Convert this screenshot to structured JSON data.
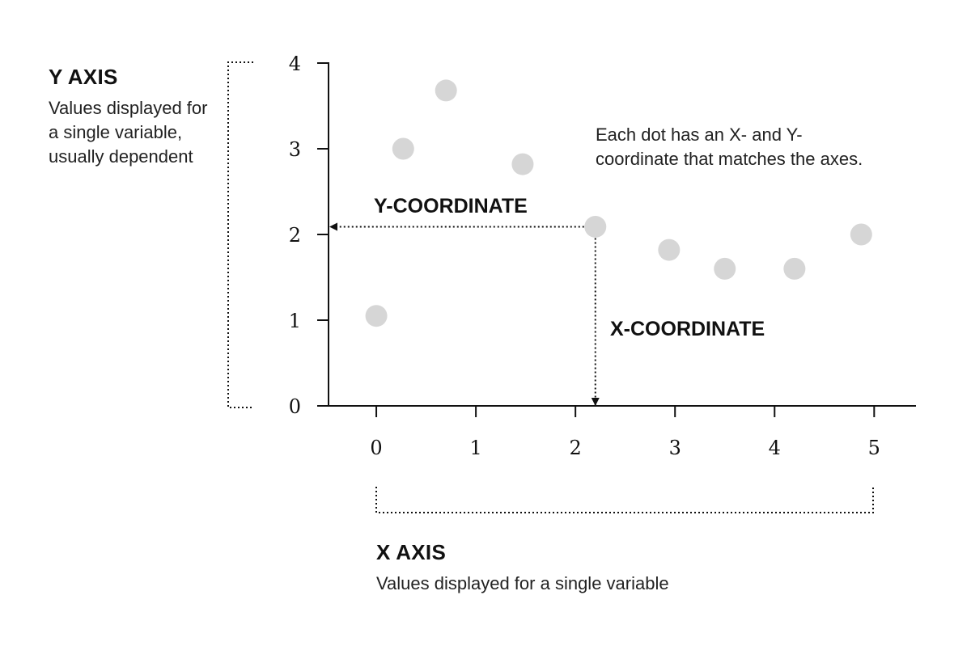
{
  "y_axis_note": {
    "heading": "Y AXIS",
    "description": "Values displayed for a single variable, usually dependent"
  },
  "x_axis_note": {
    "heading": "X AXIS",
    "description": "Values displayed for a single variable"
  },
  "dot_note": "Each dot has an X- and Y-coordinate that matches the axes.",
  "y_coordinate_label": "Y-COORDINATE",
  "x_coordinate_label": "X-COORDINATE",
  "colors": {
    "axis": "#111111",
    "dot": "#d6d6d6",
    "text": "#111111"
  },
  "chart_data": {
    "type": "scatter",
    "xlim": [
      -0.48,
      5.42
    ],
    "ylim": [
      0,
      4
    ],
    "x_ticks": [
      "0",
      "1",
      "2",
      "3",
      "4",
      "5"
    ],
    "y_ticks": [
      "0",
      "1",
      "2",
      "3",
      "4"
    ],
    "grid": false,
    "points": [
      {
        "x": 0.0,
        "y": 1.05
      },
      {
        "x": 0.27,
        "y": 3.0
      },
      {
        "x": 0.7,
        "y": 3.68
      },
      {
        "x": 1.47,
        "y": 2.82
      },
      {
        "x": 2.2,
        "y": 2.09
      },
      {
        "x": 2.94,
        "y": 1.82
      },
      {
        "x": 3.5,
        "y": 1.6
      },
      {
        "x": 4.2,
        "y": 1.6
      },
      {
        "x": 4.87,
        "y": 2.0
      }
    ],
    "highlight_point_index": 4
  }
}
